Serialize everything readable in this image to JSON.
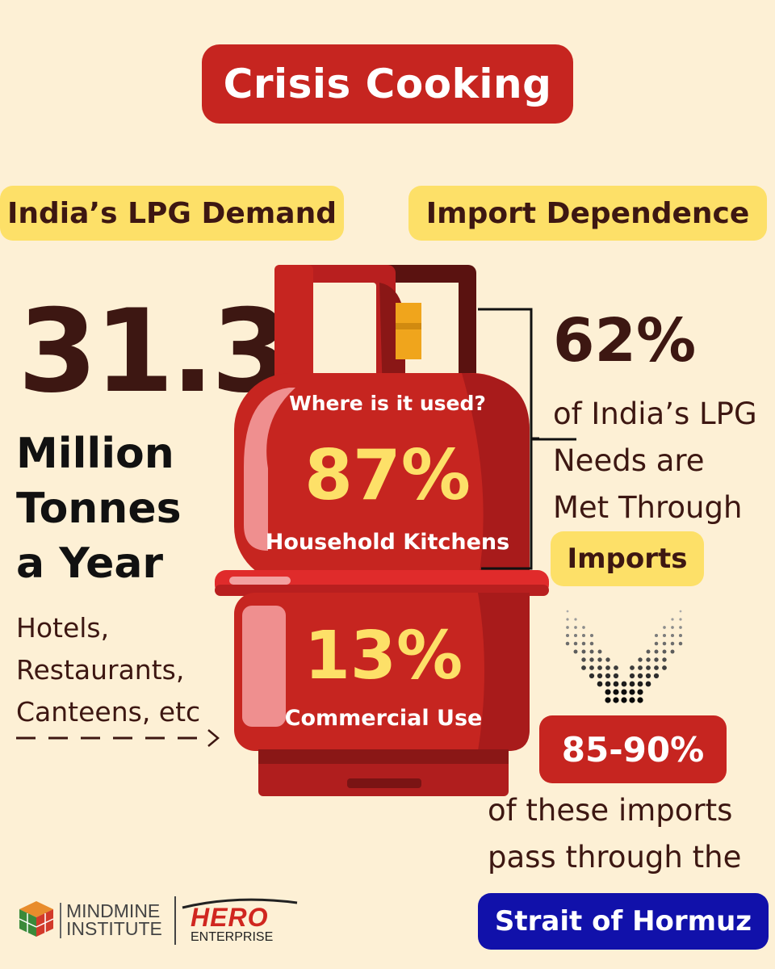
{
  "title": "Crisis Cooking",
  "demand": {
    "label": "India’s LPG Demand",
    "value": "31.3",
    "unit_line1": "Million",
    "unit_line2": "Tonnes",
    "unit_line3": "a Year",
    "commercial_examples": [
      "Hotels,",
      "Restaurants,",
      "Canteens, etc"
    ]
  },
  "cylinder": {
    "question": "Where is it used?",
    "household_pct": "87%",
    "household_label": "Household Kitchens",
    "commercial_pct": "13%",
    "commercial_label": "Commercial Use"
  },
  "import": {
    "label": "Import Dependence",
    "pct": "62%",
    "desc_line1": "of India’s LPG",
    "desc_line2": "Needs are",
    "desc_line3": "Met Through",
    "imports_label": "Imports",
    "hormuz_pct": "85-90%",
    "hormuz_line1": "of these imports",
    "hormuz_line2": "pass through the",
    "hormuz_label": "Strait of Hormuz"
  },
  "logos": {
    "mindmine_line1": "MINDMINE",
    "mindmine_line2": "INSTITUTE",
    "hero_name": "HERO",
    "hero_sub": "ENTERPRISE"
  },
  "colors": {
    "background": "#fdf0d5",
    "accent_red": "#c62520",
    "accent_yellow": "#fde068",
    "text_brown": "#3d1712",
    "hormuz_blue": "#1111aa"
  }
}
